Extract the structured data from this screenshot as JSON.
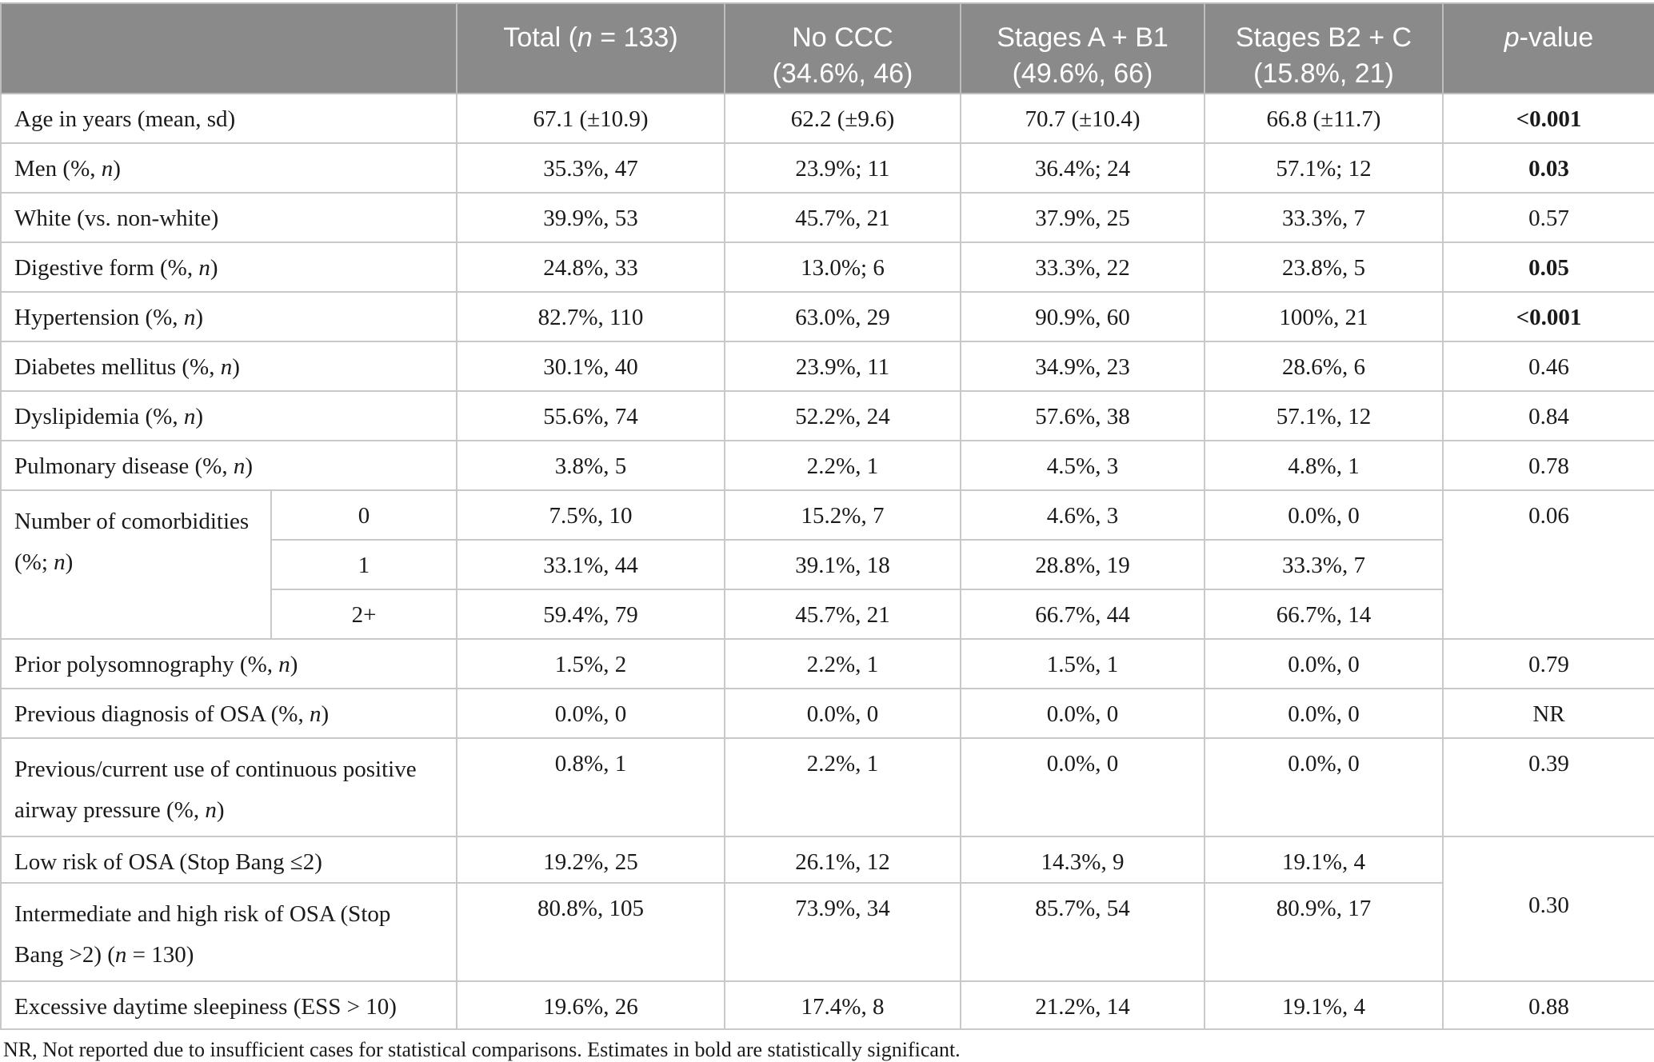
{
  "colors": {
    "header_background": "#8a8a8a",
    "header_text": "#ffffff",
    "grid_border": "#c9c9c9",
    "body_text": "#1a1a1a"
  },
  "table": {
    "header": {
      "corner": "",
      "total": "Total (<i>n</i> = 133)",
      "no_ccc": "No CCC<br>(34.6%, 46)",
      "stages_a_b1": "Stages A + B1<br>(49.6%, 66)",
      "stages_b2_c": "Stages B2 + C<br>(15.8%, 21)",
      "p_value": "<i>p</i>-value"
    },
    "rows": {
      "age": {
        "label": "Age in years (mean, sd)",
        "total": "67.1 (±10.9)",
        "no_ccc": "62.2 (±9.6)",
        "a_b1": "70.7 (±10.4)",
        "b2_c": "66.8 (±11.7)",
        "p": "<0.001"
      },
      "men": {
        "label": "Men (%, <i>n</i>)",
        "total": "35.3%, 47",
        "no_ccc": "23.9%; 11",
        "a_b1": "36.4%; 24",
        "b2_c": "57.1%; 12",
        "p": "0.03"
      },
      "white": {
        "label": "White (vs. non-white)",
        "total": "39.9%, 53",
        "no_ccc": "45.7%, 21",
        "a_b1": "37.9%, 25",
        "b2_c": "33.3%, 7",
        "p": "0.57"
      },
      "digestive": {
        "label": "Digestive form (%, <i>n</i>)",
        "total": "24.8%, 33",
        "no_ccc": "13.0%; 6",
        "a_b1": "33.3%, 22",
        "b2_c": "23.8%, 5",
        "p": "0.05"
      },
      "hypertension": {
        "label": "Hypertension (%, <i>n</i>)",
        "total": "82.7%, 110",
        "no_ccc": "63.0%, 29",
        "a_b1": "90.9%, 60",
        "b2_c": "100%, 21",
        "p": "<0.001"
      },
      "diabetes": {
        "label": "Diabetes mellitus (%, <i>n</i>)",
        "total": "30.1%, 40",
        "no_ccc": "23.9%, 11",
        "a_b1": "34.9%, 23",
        "b2_c": "28.6%, 6",
        "p": "0.46"
      },
      "dyslipidemia": {
        "label": "Dyslipidemia (%, <i>n</i>)",
        "total": "55.6%, 74",
        "no_ccc": "52.2%, 24",
        "a_b1": "57.6%, 38",
        "b2_c": "57.1%, 12",
        "p": "0.84"
      },
      "pulmonary": {
        "label": "Pulmonary disease (%, <i>n</i>)",
        "total": "3.8%, 5",
        "no_ccc": "2.2%, 1",
        "a_b1": "4.5%, 3",
        "b2_c": "4.8%, 1",
        "p": "0.78"
      },
      "comorbidities": {
        "label": "Number of comorbidities<br>(%; <i>n</i>)",
        "p": "0.06",
        "sub": [
          {
            "level": "0",
            "total": "7.5%, 10",
            "no_ccc": "15.2%, 7",
            "a_b1": "4.6%, 3",
            "b2_c": "0.0%, 0"
          },
          {
            "level": "1",
            "total": "33.1%, 44",
            "no_ccc": "39.1%, 18",
            "a_b1": "28.8%, 19",
            "b2_c": "33.3%, 7"
          },
          {
            "level": "2+",
            "total": "59.4%, 79",
            "no_ccc": "45.7%, 21",
            "a_b1": "66.7%, 44",
            "b2_c": "66.7%, 14"
          }
        ]
      },
      "polysomnography": {
        "label": "Prior polysomnography (%, <i>n</i>)",
        "total": "1.5%, 2",
        "no_ccc": "2.2%, 1",
        "a_b1": "1.5%, 1",
        "b2_c": "0.0%, 0",
        "p": "0.79"
      },
      "osa_diagnosis": {
        "label": "Previous diagnosis of OSA (%, <i>n</i>)",
        "total": "0.0%, 0",
        "no_ccc": "0.0%, 0",
        "a_b1": "0.0%, 0",
        "b2_c": "0.0%, 0",
        "p": "NR"
      },
      "cpap": {
        "label": "Previous/current use of continuous positive airway pressure (%, <i>n</i>)",
        "total": "0.8%, 1",
        "no_ccc": "2.2%, 1",
        "a_b1": "0.0%, 0",
        "b2_c": "0.0%, 0",
        "p": "0.39"
      },
      "stopbang": {
        "p": "0.30",
        "low": {
          "label": "Low risk of OSA (Stop Bang ≤2)",
          "total": "19.2%, 25",
          "no_ccc": "26.1%, 12",
          "a_b1": "14.3%, 9",
          "b2_c": "19.1%, 4"
        },
        "int_high": {
          "label": "Intermediate and high risk of OSA (Stop Bang >2) (<i>n</i> = 130)",
          "total": "80.8%, 105",
          "no_ccc": "73.9%, 34",
          "a_b1": "85.7%, 54",
          "b2_c": "80.9%, 17"
        }
      },
      "ess": {
        "label": "Excessive daytime sleepiness (ESS ˃ 10)",
        "total": "19.6%, 26",
        "no_ccc": "17.4%, 8",
        "a_b1": "21.2%, 14",
        "b2_c": "19.1%, 4",
        "p": "0.88"
      }
    },
    "footnote": "NR, Not reported due to insufficient cases for statistical comparisons. Estimates in bold are statistically significant."
  }
}
